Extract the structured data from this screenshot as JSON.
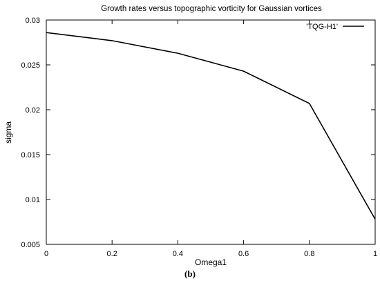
{
  "caption": "(b)",
  "chart_data": {
    "type": "line",
    "title": "Growth rates versus topographic vorticity for Gaussian vortices",
    "xlabel": "Omega1",
    "ylabel": "sigma",
    "xlim": [
      0,
      1
    ],
    "ylim": [
      0.005,
      0.03
    ],
    "x_ticks": [
      0,
      0.2,
      0.4,
      0.6,
      0.8,
      1
    ],
    "y_ticks": [
      0.005,
      0.01,
      0.015,
      0.02,
      0.025,
      0.03
    ],
    "x_tick_labels": [
      "0",
      "0.2",
      "0.4",
      "0.6",
      "0.8",
      "1"
    ],
    "y_tick_labels": [
      "0.005",
      "0.01",
      "0.015",
      "0.02",
      "0.025",
      "0.03"
    ],
    "grid": false,
    "legend_position": "top-right",
    "series": [
      {
        "name": "'TQG-H1'",
        "color": "#000000",
        "x": [
          0,
          0.2,
          0.4,
          0.6,
          0.8,
          1
        ],
        "y": [
          0.0286,
          0.0277,
          0.0263,
          0.0243,
          0.0207,
          0.0078
        ]
      }
    ]
  }
}
